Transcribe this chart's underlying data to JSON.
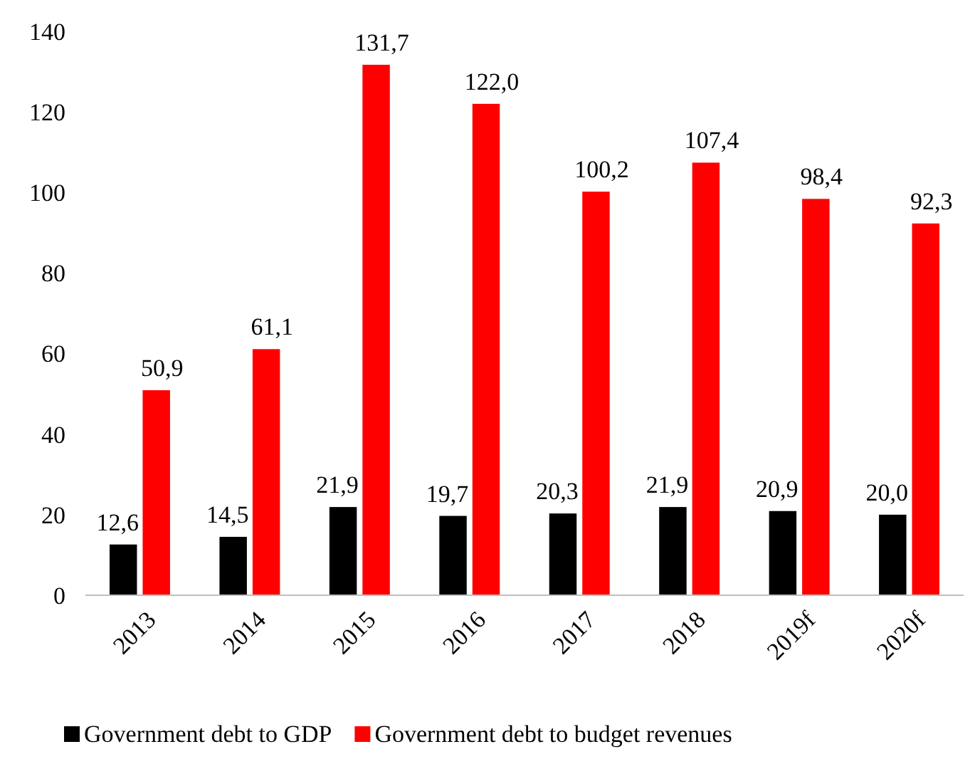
{
  "chart_data": {
    "type": "bar",
    "categories": [
      "2013",
      "2014",
      "2015",
      "2016",
      "2017",
      "2018",
      "2019f",
      "2020f"
    ],
    "series": [
      {
        "name": "Government debt to GDP",
        "color": "#000000",
        "values": [
          12.6,
          14.5,
          21.9,
          19.7,
          20.3,
          21.9,
          20.9,
          20.0
        ],
        "value_labels": [
          "12,6",
          "14,5",
          "21,9",
          "19,7",
          "20,3",
          "21,9",
          "20,9",
          "20,0"
        ]
      },
      {
        "name": "Government debt to budget revenues",
        "color": "#ff0000",
        "values": [
          50.9,
          61.1,
          131.7,
          122.0,
          100.2,
          107.4,
          98.4,
          92.3
        ],
        "value_labels": [
          "50,9",
          "61,1",
          "131,7",
          "122,0",
          "100,2",
          "107,4",
          "98,4",
          "92,3"
        ]
      }
    ],
    "ylim": [
      0,
      140
    ],
    "yticks": [
      0,
      20,
      40,
      60,
      80,
      100,
      120,
      140
    ],
    "grid": false,
    "legend": "bottom"
  }
}
